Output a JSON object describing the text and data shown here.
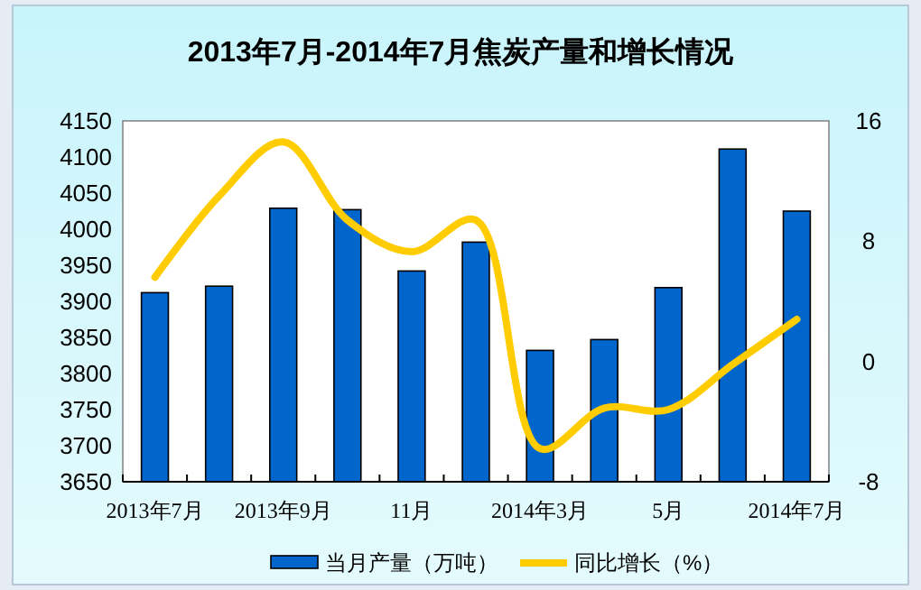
{
  "chart_data": {
    "type": "bar",
    "title": "2013年7月-2014年7月焦炭产量和增长情况",
    "categories": [
      "2013年7月",
      null,
      "2013年9月",
      null,
      "11月",
      null,
      "2014年3月",
      null,
      "5月",
      null,
      "2014年7月"
    ],
    "series": [
      {
        "name": "当月产量（万吨）",
        "type": "bar",
        "color": "#0066cc",
        "values": [
          3912,
          3921,
          4029,
          4027,
          3942,
          3982,
          3832,
          3847,
          3919,
          4111,
          4025
        ]
      },
      {
        "name": "同比增长（%）",
        "type": "line",
        "axis": "y2",
        "color": "#ffcc00",
        "values": [
          5.6,
          11,
          14.6,
          9.4,
          7.3,
          9.4,
          -5.8,
          -3.1,
          -3.2,
          -0.2,
          2.8
        ]
      }
    ],
    "ylim": [
      3650,
      4150
    ],
    "yticks": [
      3650,
      3700,
      3750,
      3800,
      3850,
      3900,
      3950,
      4000,
      4050,
      4100,
      4150
    ],
    "y2lim": [
      -8,
      16
    ],
    "y2ticks": [
      -8,
      0,
      8,
      16
    ],
    "legend": "bottom",
    "marker": "none",
    "grid": false
  }
}
